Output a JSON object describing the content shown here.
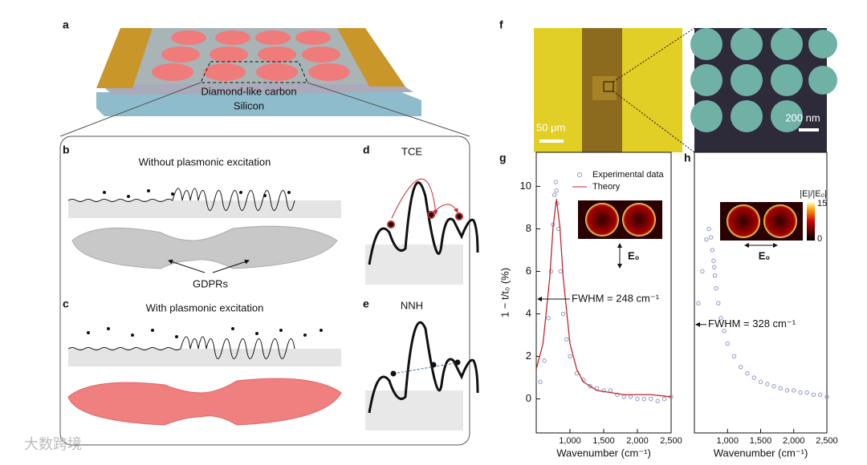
{
  "panels": {
    "a": {
      "label": "a",
      "layer_top": "Diamond-like carbon",
      "layer_bottom": "Silicon"
    },
    "b": {
      "label": "b",
      "title": "Without plasmonic excitation",
      "annotation": "GDPRs"
    },
    "c": {
      "label": "c",
      "title": "With plasmonic excitation"
    },
    "d": {
      "label": "d",
      "title": "TCE"
    },
    "e": {
      "label": "e",
      "title": "NNH"
    },
    "f": {
      "label": "f",
      "scale_left": "50 μm",
      "scale_right": "200 nm"
    },
    "g": {
      "label": "g",
      "type": "scatter",
      "xlabel": "Wavenumber (cm⁻¹)",
      "ylabel": "1 − t/t₀ (%)",
      "xlim": [
        500,
        2500
      ],
      "ylim": [
        -1.6,
        11.6
      ],
      "xticks": [
        {
          "value": 1000,
          "label": "1,000"
        },
        {
          "value": 1500,
          "label": "1,500"
        },
        {
          "value": 2000,
          "label": "2,000"
        },
        {
          "value": 2500,
          "label": "2,500"
        }
      ],
      "yticks": [
        0,
        2,
        4,
        6,
        8,
        10
      ],
      "annotation": "FWHM = 248 cm⁻¹",
      "field_label": "E₀",
      "series": [
        {
          "name": "Experimental data",
          "type": "scatter",
          "color": "#8f95c8",
          "x": [
            560,
            620,
            680,
            720,
            750,
            770,
            790,
            800,
            810,
            830,
            860,
            900,
            950,
            1000,
            1100,
            1200,
            1300,
            1400,
            1500,
            1600,
            1700,
            1800,
            1900,
            2000,
            2100,
            2200,
            2300,
            2400,
            2500
          ],
          "values": [
            0.8,
            1.8,
            3.8,
            6,
            8.2,
            9.6,
            10.2,
            9.8,
            9.2,
            8,
            6,
            4,
            2.8,
            2,
            1.2,
            0.9,
            0.6,
            0.5,
            0.4,
            0.4,
            0.2,
            0.1,
            0.1,
            0,
            0,
            0,
            -0.1,
            0,
            0.1
          ]
        },
        {
          "name": "Theory",
          "type": "line",
          "color": "#c0282d",
          "x": [
            500,
            600,
            700,
            750,
            800,
            850,
            900,
            1000,
            1100,
            1200,
            1400,
            1600,
            1800,
            2000,
            2200,
            2500
          ],
          "values": [
            1.4,
            2.6,
            5.7,
            8.1,
            9.4,
            8.1,
            5.7,
            2.6,
            1.4,
            0.8,
            0.4,
            0.3,
            0.2,
            0.2,
            0.2,
            0.1
          ]
        }
      ]
    },
    "h": {
      "label": "h",
      "type": "scatter",
      "xlabel": "Wavenumber (cm⁻¹)",
      "xlim": [
        500,
        2500
      ],
      "ylim": [
        -1.6,
        11.6
      ],
      "xticks": [
        {
          "value": 1000,
          "label": "1,000"
        },
        {
          "value": 1500,
          "label": "1,500"
        },
        {
          "value": 2000,
          "label": "2,000"
        },
        {
          "value": 2500,
          "label": "2,500"
        }
      ],
      "annotation": "FWHM = 328 cm⁻¹",
      "field_label": "E₀",
      "colorbar": {
        "label": "|E|/|E₀|",
        "max": 15,
        "min": 0
      },
      "series": [
        {
          "name": "Experimental data",
          "type": "scatter",
          "color": "#8f95c8",
          "x": [
            560,
            620,
            680,
            720,
            750,
            770,
            790,
            800,
            810,
            830,
            860,
            900,
            950,
            1000,
            1100,
            1200,
            1300,
            1400,
            1500,
            1600,
            1700,
            1800,
            1900,
            2000,
            2100,
            2200,
            2300,
            2400,
            2500
          ],
          "values": [
            4.5,
            6,
            7.5,
            8,
            7.6,
            7,
            6.5,
            6.2,
            5.8,
            5.2,
            4.5,
            3.8,
            3.2,
            2.6,
            2,
            1.5,
            1.2,
            1,
            0.8,
            0.7,
            0.6,
            0.5,
            0.4,
            0.4,
            0.3,
            0.3,
            0.2,
            0.2,
            0.1
          ]
        }
      ]
    }
  },
  "watermark": "大数跨境"
}
